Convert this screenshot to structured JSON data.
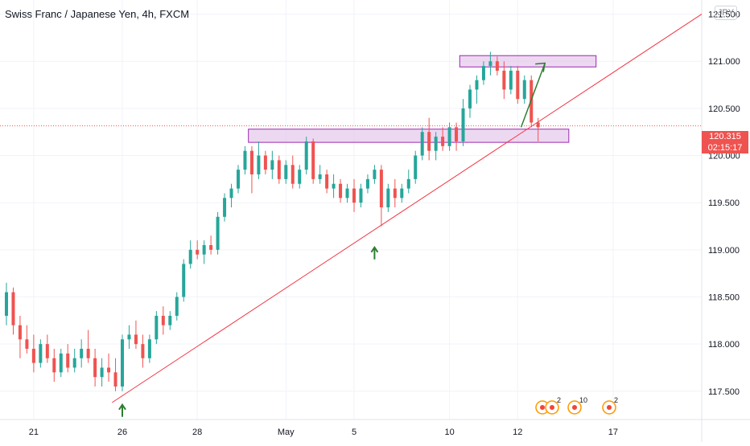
{
  "header": {
    "title": "Swiss Franc / Japanese Yen, 4h, FXCM",
    "currency": "JPY"
  },
  "last_price": {
    "value": "120.315",
    "countdown": "02:15:17"
  },
  "colors": {
    "up": "#26a69a",
    "down": "#ef5350",
    "trendline": "#f23645",
    "zone_fill": "#e1bee7",
    "zone_border": "#9c27b0",
    "arrow": "#2e7d32",
    "grid": "#f0f3fa"
  },
  "event_markers": [
    {
      "icon": "earnings-circle-icon",
      "count": "2"
    },
    {
      "icon": "earnings-circle-icon",
      "count": "10"
    },
    {
      "icon": "earnings-circle-icon",
      "count": "2"
    }
  ],
  "chart_data": {
    "type": "candlestick",
    "symbol": "CHFJPY",
    "interval": "4h",
    "y_axis": {
      "ticks": [
        117.5,
        118.0,
        118.5,
        119.0,
        119.5,
        120.0,
        120.5,
        121.0,
        121.5
      ],
      "tick_labels": [
        "117.500",
        "118.000",
        "118.500",
        "119.000",
        "119.500",
        "120.000",
        "120.500",
        "121.000",
        "121.500"
      ],
      "range": [
        117.2,
        121.65
      ]
    },
    "x_axis": {
      "tick_labels": [
        "21",
        "26",
        "28",
        "May",
        "5",
        "10",
        "12",
        "17"
      ],
      "tick_index": [
        4,
        17,
        28,
        41,
        51,
        65,
        75,
        89
      ],
      "range": [
        0,
        102
      ]
    },
    "last_price": 120.315,
    "ohlc": [
      [
        118.3,
        118.65,
        118.2,
        118.55
      ],
      [
        118.55,
        118.6,
        118.1,
        118.2
      ],
      [
        118.2,
        118.3,
        117.85,
        118.05
      ],
      [
        118.05,
        118.2,
        117.9,
        117.95
      ],
      [
        117.95,
        118.1,
        117.7,
        117.8
      ],
      [
        117.8,
        118.05,
        117.75,
        118.0
      ],
      [
        118.0,
        118.1,
        117.8,
        117.85
      ],
      [
        117.85,
        117.95,
        117.6,
        117.7
      ],
      [
        117.7,
        117.95,
        117.65,
        117.9
      ],
      [
        117.9,
        118.0,
        117.7,
        117.75
      ],
      [
        117.75,
        117.95,
        117.7,
        117.85
      ],
      [
        117.85,
        118.05,
        117.75,
        117.95
      ],
      [
        117.95,
        118.15,
        117.8,
        117.85
      ],
      [
        117.85,
        117.95,
        117.55,
        117.65
      ],
      [
        117.65,
        117.85,
        117.55,
        117.75
      ],
      [
        117.75,
        117.9,
        117.6,
        117.7
      ],
      [
        117.7,
        117.85,
        117.5,
        117.55
      ],
      [
        117.55,
        118.1,
        117.5,
        118.05
      ],
      [
        118.05,
        118.2,
        117.95,
        118.1
      ],
      [
        118.1,
        118.25,
        117.95,
        118.0
      ],
      [
        118.0,
        118.1,
        117.75,
        117.85
      ],
      [
        117.85,
        118.1,
        117.8,
        118.05
      ],
      [
        118.05,
        118.35,
        118.0,
        118.3
      ],
      [
        118.3,
        118.4,
        118.1,
        118.2
      ],
      [
        118.2,
        118.35,
        118.15,
        118.3
      ],
      [
        118.3,
        118.55,
        118.25,
        118.5
      ],
      [
        118.5,
        118.9,
        118.45,
        118.85
      ],
      [
        118.85,
        119.1,
        118.8,
        119.0
      ],
      [
        119.0,
        119.1,
        118.9,
        118.95
      ],
      [
        118.95,
        119.1,
        118.85,
        119.05
      ],
      [
        119.05,
        119.15,
        118.95,
        119.0
      ],
      [
        119.0,
        119.4,
        118.95,
        119.35
      ],
      [
        119.35,
        119.6,
        119.3,
        119.55
      ],
      [
        119.55,
        119.7,
        119.45,
        119.65
      ],
      [
        119.65,
        119.9,
        119.6,
        119.85
      ],
      [
        119.85,
        120.1,
        119.8,
        120.05
      ],
      [
        120.05,
        120.1,
        119.6,
        119.8
      ],
      [
        119.8,
        120.15,
        119.75,
        120.0
      ],
      [
        120.0,
        120.05,
        119.8,
        119.85
      ],
      [
        119.85,
        120.05,
        119.75,
        119.95
      ],
      [
        119.95,
        120.0,
        119.7,
        119.75
      ],
      [
        119.75,
        119.95,
        119.7,
        119.9
      ],
      [
        119.9,
        120.0,
        119.65,
        119.7
      ],
      [
        119.7,
        119.9,
        119.65,
        119.85
      ],
      [
        119.85,
        120.2,
        119.8,
        120.15
      ],
      [
        120.15,
        120.18,
        119.7,
        119.75
      ],
      [
        119.75,
        119.9,
        119.7,
        119.8
      ],
      [
        119.8,
        119.85,
        119.6,
        119.65
      ],
      [
        119.65,
        119.8,
        119.55,
        119.7
      ],
      [
        119.7,
        119.75,
        119.5,
        119.55
      ],
      [
        119.55,
        119.7,
        119.5,
        119.65
      ],
      [
        119.65,
        119.75,
        119.4,
        119.5
      ],
      [
        119.5,
        119.7,
        119.45,
        119.65
      ],
      [
        119.65,
        119.8,
        119.6,
        119.75
      ],
      [
        119.75,
        119.9,
        119.7,
        119.85
      ],
      [
        119.85,
        119.9,
        119.25,
        119.45
      ],
      [
        119.45,
        119.7,
        119.4,
        119.65
      ],
      [
        119.65,
        119.75,
        119.45,
        119.55
      ],
      [
        119.55,
        119.7,
        119.5,
        119.65
      ],
      [
        119.65,
        119.85,
        119.6,
        119.75
      ],
      [
        119.75,
        120.05,
        119.7,
        120.0
      ],
      [
        120.0,
        120.3,
        119.95,
        120.25
      ],
      [
        120.25,
        120.4,
        119.95,
        120.05
      ],
      [
        120.05,
        120.25,
        119.95,
        120.2
      ],
      [
        120.2,
        120.3,
        120.05,
        120.1
      ],
      [
        120.1,
        120.35,
        120.05,
        120.3
      ],
      [
        120.3,
        120.35,
        120.05,
        120.15
      ],
      [
        120.15,
        120.6,
        120.1,
        120.5
      ],
      [
        120.5,
        120.75,
        120.4,
        120.7
      ],
      [
        120.7,
        120.85,
        120.55,
        120.8
      ],
      [
        120.8,
        121.0,
        120.75,
        120.95
      ],
      [
        120.95,
        121.1,
        120.85,
        121.0
      ],
      [
        121.0,
        121.05,
        120.85,
        120.9
      ],
      [
        120.9,
        121.0,
        120.6,
        120.7
      ],
      [
        120.7,
        120.95,
        120.65,
        120.9
      ],
      [
        120.9,
        120.95,
        120.55,
        120.6
      ],
      [
        120.6,
        120.85,
        120.55,
        120.8
      ],
      [
        120.8,
        120.85,
        120.3,
        120.35
      ],
      [
        120.35,
        120.4,
        120.15,
        120.3
      ]
    ],
    "zones": [
      {
        "name": "resistance-zone",
        "low": 120.94,
        "high": 121.06,
        "x_start": 66.5,
        "x_end": 86.5
      },
      {
        "name": "support-zone",
        "low": 120.14,
        "high": 120.28,
        "x_start": 35.5,
        "x_end": 82.5
      }
    ],
    "trendline": {
      "points": [
        [
          15.5,
          117.38
        ],
        [
          102,
          121.5
        ]
      ]
    },
    "projection_arrow": {
      "points": [
        [
          75.5,
          120.3
        ],
        [
          79,
          120.98
        ]
      ]
    },
    "marker_arrows": [
      {
        "x": 17,
        "price": 117.45
      },
      {
        "x": 54,
        "price": 119.12
      }
    ]
  }
}
